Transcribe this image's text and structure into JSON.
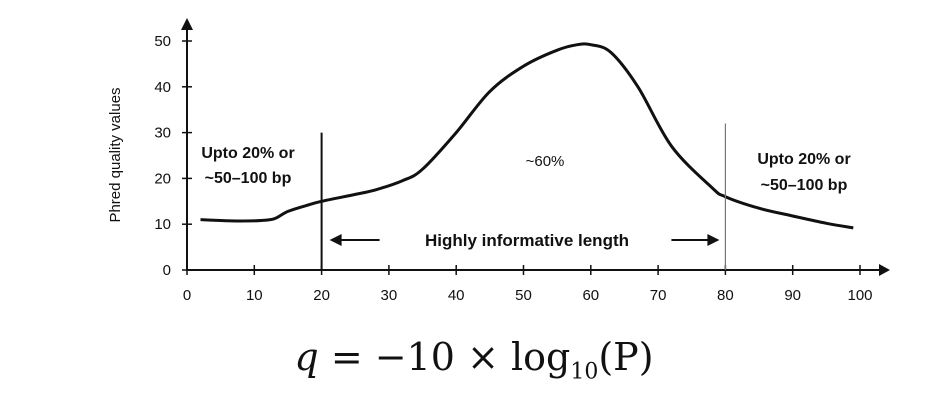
{
  "chart_data": {
    "type": "line",
    "title": "",
    "xlabel": "",
    "ylabel": "Phred quality values",
    "xlim": [
      0,
      100
    ],
    "ylim": [
      0,
      50
    ],
    "xticks": [
      0,
      10,
      20,
      30,
      40,
      50,
      60,
      70,
      80,
      90,
      100
    ],
    "yticks": [
      0,
      10,
      20,
      30,
      40,
      50
    ],
    "x": [
      2,
      5,
      8,
      11,
      13,
      15,
      18,
      20,
      25,
      28,
      32,
      35,
      40,
      45,
      50,
      55,
      58,
      60,
      63,
      67,
      72,
      78,
      80,
      85,
      90,
      95,
      99
    ],
    "y": [
      11,
      10.8,
      10.7,
      10.8,
      11.2,
      12.8,
      14.2,
      15,
      16.5,
      17.5,
      19.5,
      22,
      30,
      39,
      44.5,
      48,
      49.2,
      49.2,
      47.5,
      40,
      27,
      18,
      16,
      13.5,
      11.8,
      10.2,
      9.2
    ],
    "markers": [
      {
        "x": 20,
        "height": 30
      },
      {
        "x": 80,
        "height": 32
      }
    ],
    "annotations": {
      "left_region": [
        "Upto 20% or",
        "~50–100 bp"
      ],
      "middle_region": "~60%",
      "right_region": [
        "Upto 20% or",
        "~50–100 bp"
      ],
      "band": "Highly informative length"
    }
  },
  "formula": {
    "lhs": "q",
    "equals": "=",
    "coefficient": "−10",
    "times": "×",
    "log": "log",
    "base": "10",
    "argument": "(P)"
  }
}
